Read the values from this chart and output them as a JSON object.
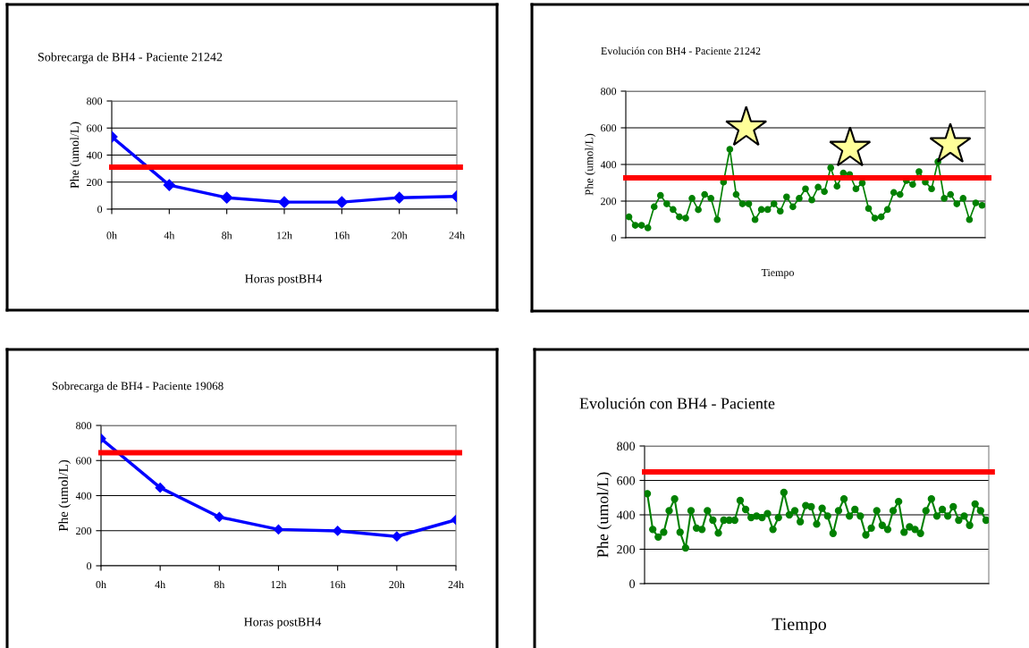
{
  "chart_data": [
    {
      "type": "line",
      "title": "Sobrecarga de BH4 - Paciente 21242",
      "xlabel": "Horas postBH4",
      "ylabel": "Phe (umol/L)",
      "categories": [
        "0h",
        "4h",
        "8h",
        "12h",
        "16h",
        "20h",
        "24h"
      ],
      "series": [
        {
          "color": "#0000ff",
          "values": [
            535,
            178,
            85,
            52,
            52,
            85,
            95
          ]
        }
      ],
      "ylim": [
        0,
        800
      ],
      "yticks": [
        0,
        200,
        400,
        600,
        800
      ],
      "grid": "y",
      "marker": "diamond",
      "line_style": "solid",
      "ref_lines": [
        {
          "axis": "y",
          "value": 310,
          "color": "#ff0000"
        }
      ]
    },
    {
      "type": "line",
      "title": "Evolución con BH4 - Paciente 21242",
      "xlabel": "Tiempo",
      "ylabel": "Phe (umol/L)",
      "categories": [
        null,
        null,
        null,
        null,
        null,
        null,
        null,
        null,
        null,
        null,
        null,
        null,
        null,
        null,
        null,
        null,
        null,
        null,
        null,
        null,
        null,
        null,
        null,
        null,
        null,
        null,
        null,
        null,
        null,
        null,
        null,
        null,
        null,
        null,
        null,
        null,
        null,
        null,
        null,
        null,
        null,
        null,
        null,
        null,
        null,
        null,
        null,
        null,
        null,
        null,
        null,
        null,
        null,
        null,
        null,
        null,
        null
      ],
      "series": [
        {
          "color": "#008000",
          "values": [
            114,
            68,
            68,
            54,
            169,
            231,
            185,
            154,
            114,
            107,
            215,
            153,
            236,
            215,
            99,
            304,
            483,
            236,
            185,
            185,
            99,
            154,
            154,
            185,
            145,
            223,
            169,
            215,
            267,
            206,
            276,
            252,
            382,
            281,
            353,
            345,
            267,
            299,
            160,
            107,
            114,
            154,
            247,
            236,
            312,
            291,
            361,
            304,
            267,
            415,
            215,
            236,
            185,
            215,
            99,
            190,
            177
          ]
        }
      ],
      "ylim": [
        0,
        800
      ],
      "yticks": [
        0,
        200,
        400,
        600,
        800
      ],
      "grid": "y",
      "marker": "circle",
      "line_style": "solid",
      "ref_lines": [
        {
          "axis": "y",
          "value": 327,
          "color": "#ff0000"
        }
      ]
    },
    {
      "type": "line",
      "title": "Sobrecarga de BH4 - Paciente 19068",
      "xlabel": "Horas postBH4",
      "ylabel": "Phe (umol/L)",
      "categories": [
        "0h",
        "4h",
        "8h",
        "12h",
        "16h",
        "20h",
        "24h"
      ],
      "series": [
        {
          "color": "#0000ff",
          "values": [
            725,
            445,
            278,
            207,
            199,
            167,
            262
          ]
        }
      ],
      "ylim": [
        0,
        800
      ],
      "yticks": [
        0,
        200,
        400,
        600,
        800
      ],
      "grid": "y",
      "marker": "diamond",
      "line_style": "solid",
      "ref_lines": [
        {
          "axis": "y",
          "value": 645,
          "color": "#ff0000"
        }
      ]
    },
    {
      "type": "line",
      "title": "Evolución con BH4 - Paciente",
      "xlabel": "Tiempo",
      "ylabel": "Phe (umol/L)",
      "categories": [
        null,
        null,
        null,
        null,
        null,
        null,
        null,
        null,
        null,
        null,
        null,
        null,
        null,
        null,
        null,
        null,
        null,
        null,
        null,
        null,
        null,
        null,
        null,
        null,
        null,
        null,
        null,
        null,
        null,
        null,
        null,
        null,
        null,
        null,
        null,
        null,
        null,
        null,
        null,
        null,
        null,
        null,
        null,
        null,
        null,
        null,
        null,
        null,
        null,
        null,
        null,
        null,
        null,
        null,
        null,
        null,
        null,
        null,
        null,
        null,
        null,
        null,
        null
      ],
      "series": [
        {
          "color": "#008000",
          "values": [
            523,
            315,
            271,
            299,
            424,
            492,
            299,
            207,
            424,
            323,
            315,
            424,
            369,
            294,
            369,
            369,
            369,
            483,
            431,
            384,
            393,
            384,
            407,
            315,
            384,
            530,
            400,
            424,
            360,
            454,
            447,
            346,
            438,
            393,
            292,
            424,
            492,
            393,
            431,
            393,
            283,
            323,
            424,
            339,
            315,
            424,
            477,
            299,
            330,
            315,
            292,
            424,
            492,
            393,
            431,
            393,
            447,
            369,
            393,
            339,
            463,
            424,
            369
          ]
        }
      ],
      "ylim": [
        0,
        800
      ],
      "yticks": [
        0,
        200,
        400,
        600,
        800
      ],
      "grid": "y",
      "marker": "circle",
      "line_style": "solid",
      "ref_lines": [
        {
          "axis": "y",
          "value": 650,
          "color": "#ff0000"
        }
      ]
    }
  ]
}
